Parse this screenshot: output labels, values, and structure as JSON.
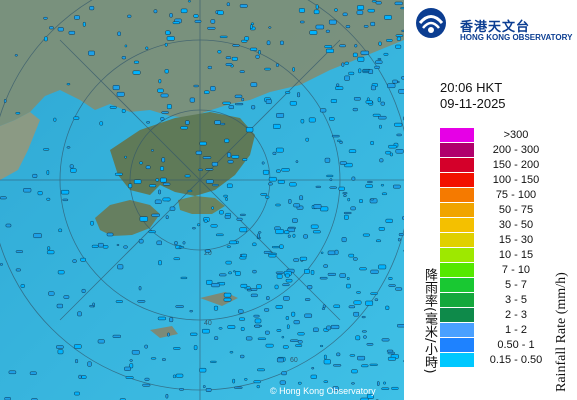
{
  "header": {
    "org_cn": "香港天文台",
    "org_en": "HONG KONG OBSERVATORY"
  },
  "timestamp": {
    "time": "20:06 HKT",
    "date": "09-11-2025"
  },
  "legend": {
    "title_cn": "降雨率(毫米/小時)",
    "title_en": "Rainfall Rate (mm/h)",
    "items": [
      {
        "label": ">300",
        "color": "#e600e6"
      },
      {
        "label": "200 - 300",
        "color": "#b0006c"
      },
      {
        "label": "150 - 200",
        "color": "#d4002a"
      },
      {
        "label": "100 - 150",
        "color": "#f21000"
      },
      {
        "label": "75 - 100",
        "color": "#f57a00"
      },
      {
        "label": "50 - 75",
        "color": "#f0a400"
      },
      {
        "label": "30 - 50",
        "color": "#f4c000"
      },
      {
        "label": "15 - 30",
        "color": "#e0d000"
      },
      {
        "label": "10 - 15",
        "color": "#9ee800"
      },
      {
        "label": "7 - 10",
        "color": "#55e800"
      },
      {
        "label": "5 - 7",
        "color": "#19c832"
      },
      {
        "label": "3 - 5",
        "color": "#14a83c"
      },
      {
        "label": "2 - 3",
        "color": "#0e8a4a"
      },
      {
        "label": "1 - 2",
        "color": "#4aa0ff"
      },
      {
        "label": "0.50 - 1",
        "color": "#1e82ff"
      },
      {
        "label": "0.15 - 0.50",
        "color": "#00c8ff"
      }
    ]
  },
  "map": {
    "range_rings_km": [
      "20",
      "40",
      "60"
    ],
    "sea_color": "#3ab6e0",
    "land_color": "#6f8a6a",
    "rain_color": "#00b4ff"
  },
  "footer": {
    "copyright": "© Hong Kong Observatory"
  }
}
